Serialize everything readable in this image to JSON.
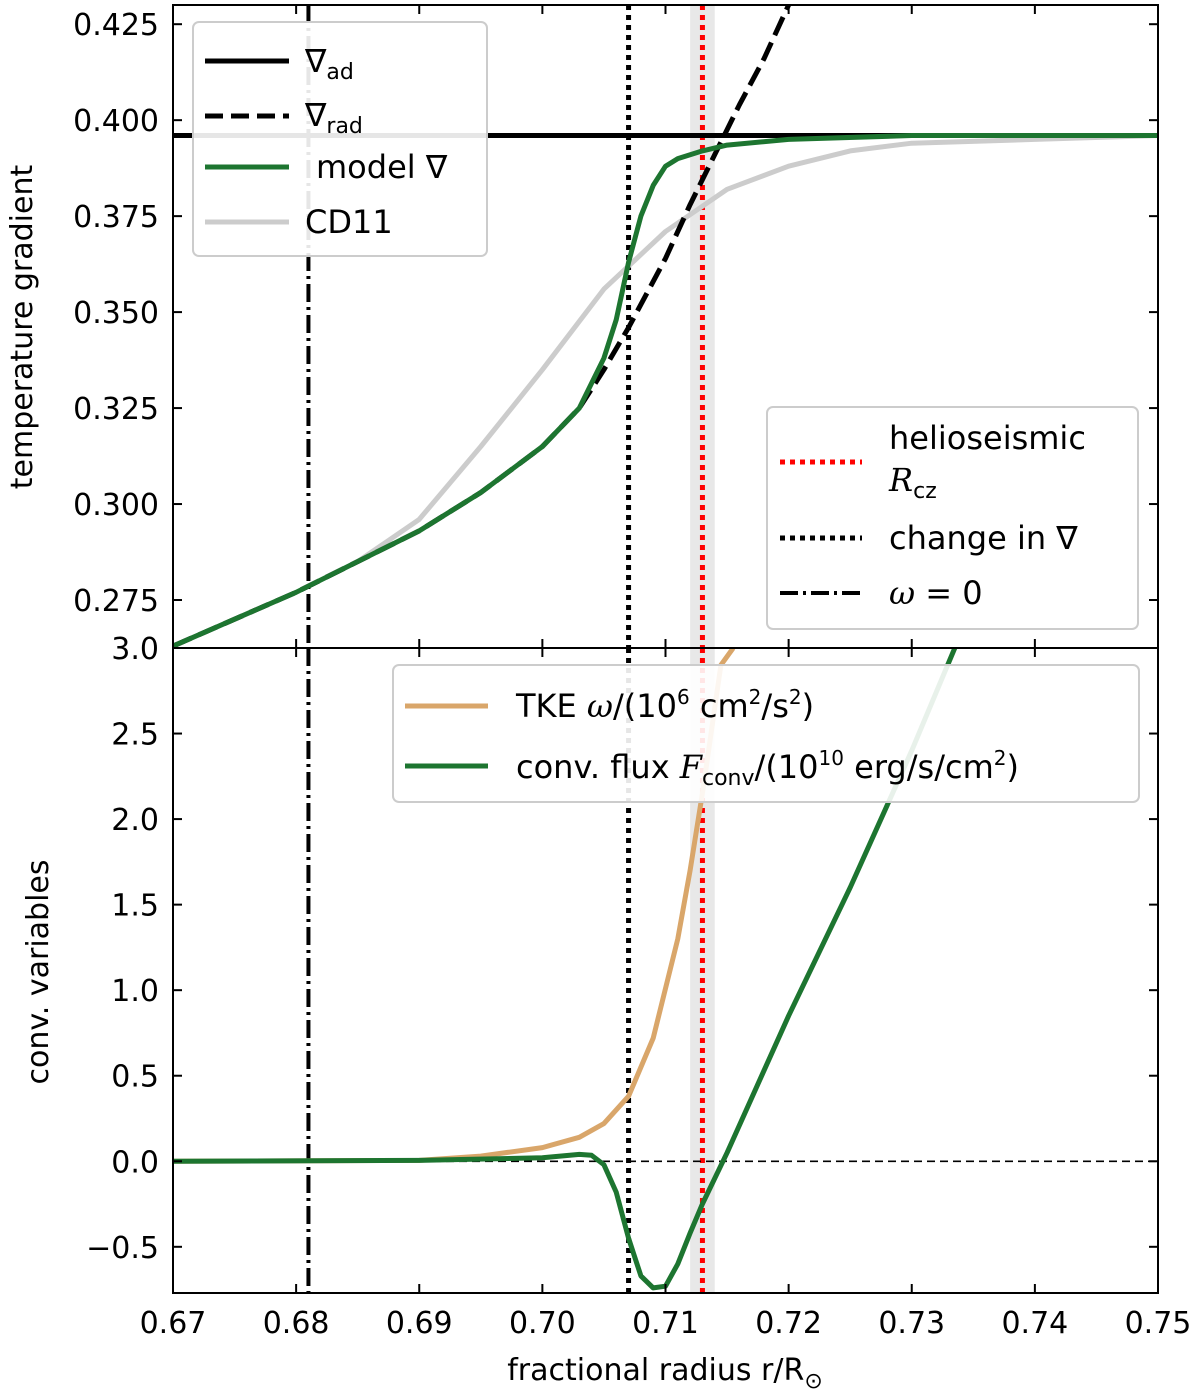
{
  "chart_data": [
    {
      "type": "line",
      "panel": "top",
      "ylabel": "temperature gradient",
      "xlim": [
        0.67,
        0.75
      ],
      "ylim": [
        0.2625,
        0.43
      ],
      "yticks": [
        0.275,
        0.3,
        0.325,
        0.35,
        0.375,
        0.4,
        0.425
      ],
      "ytick_labels": [
        "0.275",
        "0.300",
        "0.325",
        "0.350",
        "0.375",
        "0.400",
        "0.425"
      ],
      "colors": {
        "grad_ad": "#000000",
        "grad_rad": "#000000",
        "model": "#1d7530",
        "cd11": "#cccccc"
      },
      "series": [
        {
          "key": "grad_ad",
          "name": "∇",
          "sub": "ad",
          "style": "solid",
          "x": [
            0.67,
            0.75
          ],
          "y": [
            0.396,
            0.396
          ]
        },
        {
          "key": "grad_rad",
          "name": "∇",
          "sub": "rad",
          "style": "dashed",
          "x": [
            0.67,
            0.68,
            0.69,
            0.695,
            0.7,
            0.703,
            0.705,
            0.707,
            0.71,
            0.712,
            0.714,
            0.716,
            0.718,
            0.72
          ],
          "y": [
            0.263,
            0.277,
            0.293,
            0.303,
            0.315,
            0.325,
            0.335,
            0.346,
            0.364,
            0.378,
            0.391,
            0.404,
            0.416,
            0.43
          ]
        },
        {
          "key": "model",
          "name": "model ∇",
          "style": "solid",
          "x": [
            0.67,
            0.68,
            0.69,
            0.695,
            0.7,
            0.703,
            0.705,
            0.706,
            0.707,
            0.708,
            0.709,
            0.71,
            0.711,
            0.712,
            0.713,
            0.715,
            0.72,
            0.73,
            0.74,
            0.75
          ],
          "y": [
            0.263,
            0.277,
            0.293,
            0.303,
            0.315,
            0.325,
            0.338,
            0.348,
            0.363,
            0.375,
            0.383,
            0.388,
            0.39,
            0.391,
            0.392,
            0.3935,
            0.395,
            0.396,
            0.396,
            0.396
          ]
        },
        {
          "key": "cd11",
          "name": "CD11",
          "style": "solid",
          "x": [
            0.685,
            0.69,
            0.695,
            0.7,
            0.705,
            0.71,
            0.715,
            0.72,
            0.725,
            0.73,
            0.74,
            0.75
          ],
          "y": [
            0.285,
            0.296,
            0.315,
            0.335,
            0.356,
            0.371,
            0.382,
            0.388,
            0.392,
            0.394,
            0.395,
            0.396
          ]
        }
      ],
      "legend_upper_left": [
        "∇ad",
        "∇rad",
        "model ∇",
        "CD11"
      ],
      "legend_lower_right": [
        "helioseismic R_cz",
        "change in ∇",
        "ω = 0"
      ]
    },
    {
      "type": "line",
      "panel": "bottom",
      "xlabel": "fractional radius r/R",
      "xlabel_symbol": "⊙",
      "ylabel": "conv. variables",
      "xlim": [
        0.67,
        0.75
      ],
      "ylim": [
        -0.77,
        3.0
      ],
      "xticks": [
        0.67,
        0.68,
        0.69,
        0.7,
        0.71,
        0.72,
        0.73,
        0.74,
        0.75
      ],
      "xtick_labels": [
        "0.67",
        "0.68",
        "0.69",
        "0.70",
        "0.71",
        "0.72",
        "0.73",
        "0.74",
        "0.75"
      ],
      "yticks": [
        -0.5,
        0.0,
        0.5,
        1.0,
        1.5,
        2.0,
        2.5,
        3.0
      ],
      "ytick_labels": [
        "−0.5",
        "0.0",
        "0.5",
        "1.0",
        "1.5",
        "2.0",
        "2.5",
        "3.0"
      ],
      "colors": {
        "tke": "#d9a66a",
        "flux": "#1d7530"
      },
      "series": [
        {
          "key": "tke",
          "name": "TKE ω/(10⁶ cm²/s²)",
          "x": [
            0.67,
            0.69,
            0.695,
            0.7,
            0.703,
            0.705,
            0.707,
            0.709,
            0.711,
            0.712,
            0.713,
            0.7135,
            0.714,
            0.7145,
            0.7155
          ],
          "y": [
            0.0,
            0.005,
            0.03,
            0.08,
            0.14,
            0.22,
            0.38,
            0.72,
            1.3,
            1.7,
            2.15,
            2.4,
            2.65,
            2.9,
            3.0
          ]
        },
        {
          "key": "flux",
          "name": "conv. flux F_conv/(10¹⁰ erg/s/cm²)",
          "x": [
            0.67,
            0.69,
            0.7,
            0.703,
            0.704,
            0.705,
            0.706,
            0.707,
            0.708,
            0.709,
            0.71,
            0.711,
            0.712,
            0.713,
            0.715,
            0.72,
            0.725,
            0.73,
            0.7335
          ],
          "y": [
            0.0,
            0.005,
            0.02,
            0.04,
            0.035,
            -0.02,
            -0.18,
            -0.45,
            -0.67,
            -0.74,
            -0.73,
            -0.6,
            -0.42,
            -0.25,
            0.05,
            0.85,
            1.6,
            2.4,
            3.0
          ]
        }
      ],
      "legend": [
        "TKE ω/(10⁶ cm²/s²)",
        "conv. flux F_conv/(10¹⁰ erg/s/cm²)"
      ]
    }
  ],
  "vlines": [
    {
      "key": "helio",
      "x": 0.713,
      "style": "dotted",
      "color": "#ff0000",
      "band": [
        0.712,
        0.714
      ],
      "band_color": "#d9d9d9"
    },
    {
      "key": "change",
      "x": 0.707,
      "style": "dotted",
      "color": "#000000"
    },
    {
      "key": "omega",
      "x": 0.681,
      "style": "dashdot",
      "color": "#000000"
    }
  ],
  "hlines": [
    {
      "panel": "bottom",
      "y": 0.0,
      "style": "thin-dashed",
      "color": "#000000"
    }
  ],
  "labels": {
    "top_ylabel": "temperature gradient",
    "bottom_ylabel": "conv. variables",
    "xlabel": "fractional radius r/R",
    "xlabel_symbol": "⊙",
    "top_axis_label_3": "3.0",
    "legend_top_left": {
      "grad_ad_main": "∇",
      "grad_ad_sub": "ad",
      "grad_rad_main": "∇",
      "grad_rad_sub": "rad",
      "model": "model ∇",
      "cd11": "CD11"
    },
    "legend_top_right": {
      "helio_line1": "helioseismic",
      "helio_line2_main": "R",
      "helio_line2_sub": "cz",
      "change": "change in ∇",
      "omega_sym": "ω",
      "omega_rest": " = 0"
    },
    "legend_bottom": {
      "tke_a": "TKE ",
      "tke_omega": "ω",
      "tke_b": "/(10",
      "tke_sup1": "6",
      "tke_c": " cm",
      "tke_sup2": "2",
      "tke_d": "/s",
      "tke_sup3": "2",
      "tke_e": ")",
      "flux_a": "conv. flux ",
      "flux_F": "F",
      "flux_sub": "conv",
      "flux_b": "/(10",
      "flux_sup1": "10",
      "flux_c": " erg/s/cm",
      "flux_sup2": "2",
      "flux_d": ")"
    }
  }
}
